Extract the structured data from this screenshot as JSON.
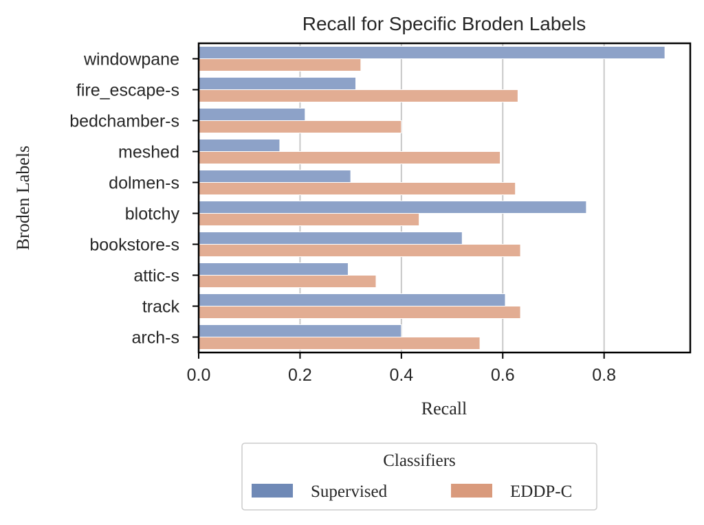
{
  "chart_data": {
    "type": "bar",
    "orientation": "horizontal",
    "title": "Recall for Specific Broden Labels",
    "xlabel": "Recall",
    "ylabel": "Broden Labels",
    "xlim": [
      0,
      0.97
    ],
    "xticks": [
      "0.0",
      "0.2",
      "0.4",
      "0.6",
      "0.8"
    ],
    "grid": "vertical",
    "categories": [
      "windowpane",
      "fire_escape-s",
      "bedchamber-s",
      "meshed",
      "dolmen-s",
      "blotchy",
      "bookstore-s",
      "attic-s",
      "track",
      "arch-s"
    ],
    "series": [
      {
        "name": "Supervised",
        "color": "#8da2c8",
        "values": [
          0.92,
          0.31,
          0.21,
          0.16,
          0.3,
          0.765,
          0.52,
          0.295,
          0.605,
          0.4
        ]
      },
      {
        "name": "EDDP-C",
        "color": "#e2ad93",
        "values": [
          0.32,
          0.63,
          0.4,
          0.595,
          0.625,
          0.435,
          0.635,
          0.35,
          0.635,
          0.555
        ]
      }
    ],
    "legend": {
      "title": "Classifiers",
      "placement": "below",
      "swatch_colors": [
        "#6f89b6",
        "#d99a7c"
      ]
    }
  }
}
